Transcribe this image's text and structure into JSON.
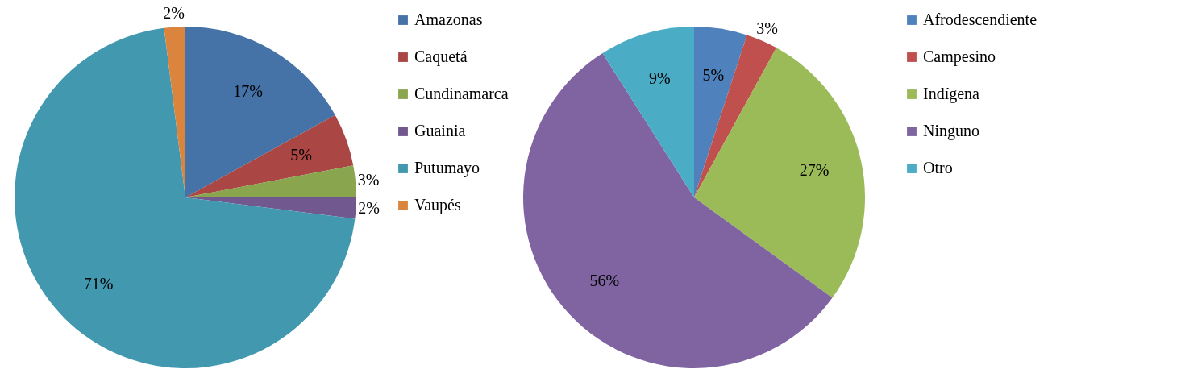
{
  "chart_data": [
    {
      "type": "pie",
      "categories": [
        "Amazonas",
        "Caquetá",
        "Cundinamarca",
        "Guainia",
        "Putumayo",
        "Vaupés"
      ],
      "values": [
        17,
        5,
        3,
        2,
        71,
        2
      ],
      "colors": [
        "#4572a7",
        "#aa4643",
        "#89a54e",
        "#71588f",
        "#4198af",
        "#db843d"
      ],
      "value_labels": [
        "17%",
        "5%",
        "3%",
        "2%",
        "71%",
        "2%"
      ],
      "legend": "right"
    },
    {
      "type": "pie",
      "categories": [
        "Afrodescendiente",
        "Campesino",
        "Indígena",
        "Ninguno",
        "Otro"
      ],
      "values": [
        5,
        3,
        27,
        56,
        9
      ],
      "colors": [
        "#4f81bd",
        "#c0504d",
        "#9bbb59",
        "#8064a2",
        "#4bacc6"
      ],
      "value_labels": [
        "5%",
        "3%",
        "27%",
        "56%",
        "9%"
      ],
      "legend": "right"
    }
  ]
}
